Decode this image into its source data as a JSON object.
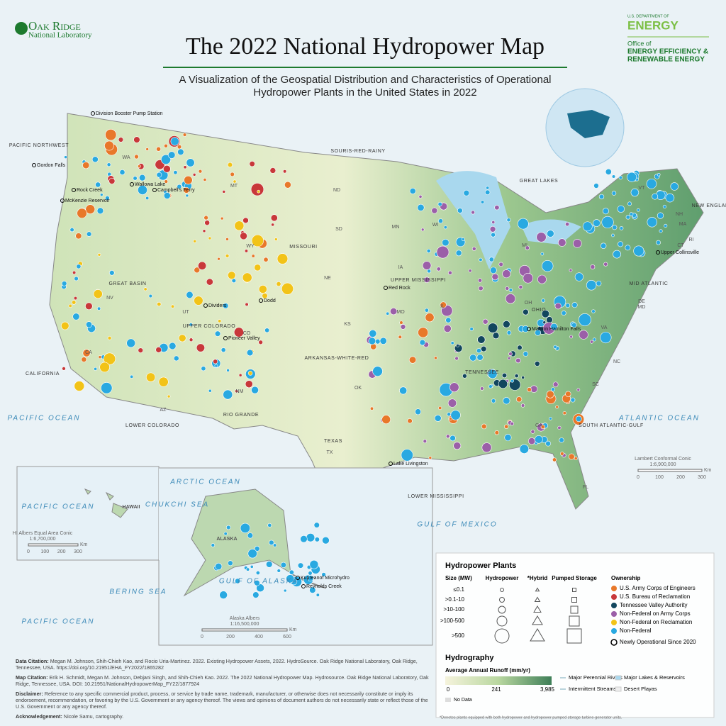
{
  "header": {
    "org_left": [
      "Oak Ridge",
      "National Laboratory"
    ],
    "title": "The 2022 National Hydropower Map",
    "subtitle": [
      "A Visualization of the Geospatial Distribution and Characteristics of Operational",
      "Hydropower Plants in the United States in 2022"
    ],
    "org_right": [
      "U.S. DEPARTMENT OF",
      "ENERGY",
      "Office of",
      "ENERGY EFFICIENCY &",
      "RENEWABLE ENERGY"
    ]
  },
  "map_labels": {
    "regions": [
      "PACIFIC NORTHWEST",
      "GREAT BASIN",
      "CALIFORNIA",
      "LOWER COLORADO",
      "UPPER COLORADO",
      "RIO GRANDE",
      "MISSOURI",
      "SOURIS-RED-RAINY",
      "ARKANSAS-WHITE-RED",
      "TEXAS",
      "UPPER MISSISSIPPI",
      "LOWER MISSISSIPPI",
      "GREAT LAKES",
      "OHIO",
      "TENNESSEE",
      "SOUTH ATLANTIC-GULF",
      "MID ATLANTIC",
      "NEW ENGLAND"
    ],
    "waters": [
      "PACIFIC OCEAN",
      "ATLANTIC OCEAN",
      "GULF OF MEXICO",
      "ARCTIC OCEAN",
      "CHUKCHI SEA",
      "BERING SEA",
      "GULF OF ALASKA",
      "PACIFIC OCEAN",
      "PACIFIC OCEAN"
    ],
    "states": [
      "WA",
      "MT",
      "ND",
      "SD",
      "WY",
      "NE",
      "NV",
      "UT",
      "CO",
      "CA",
      "AZ",
      "NM",
      "KS",
      "OK",
      "TX",
      "MN",
      "IA",
      "MO",
      "WI",
      "MI",
      "IL",
      "OH",
      "VA",
      "NC",
      "SC",
      "GA",
      "FL",
      "VT",
      "NH",
      "MA",
      "CT",
      "RI",
      "DE",
      "MD",
      "HAWAII",
      "ALASKA"
    ],
    "plants": [
      "Division Booster Pump Station",
      "Gordon Falls",
      "Rock Creek",
      "Wallowa Lake",
      "McKenzie Reservoir",
      "Campbell's Ferry",
      "Dividers",
      "Dodd",
      "Pioneer Valley",
      "Red Rock",
      "Mahlon Hamilton Falls",
      "Upper Collinsville",
      "Lake Livingston",
      "Kupreanof Microhydro",
      "Reynolds Creek"
    ]
  },
  "scales": {
    "main": {
      "projection": "Lambert Conformal Conic",
      "ratio": "1:6,900,000",
      "unit": "Km",
      "ticks": [
        "0",
        "100",
        "200",
        "300"
      ]
    },
    "hawaii": {
      "projection": "HI Albers Equal Area Conic",
      "ratio": "1:6,700,000",
      "unit": "Km",
      "ticks": [
        "0",
        "100",
        "200",
        "300"
      ]
    },
    "alaska": {
      "projection": "Alaska Albers",
      "ratio": "1:16,500,000",
      "unit": "Km",
      "ticks": [
        "0",
        "200",
        "400",
        "600"
      ]
    }
  },
  "legend": {
    "title": "Hydropower Plants",
    "columns": [
      "Size (MW)",
      "Hydropower",
      "*Hybrid",
      "Pumped Storage"
    ],
    "sizes": [
      "≤0.1",
      ">0.1-10",
      ">10-100",
      ">100-500",
      ">500"
    ],
    "ownership_title": "Ownership",
    "ownership": [
      {
        "name": "U.S. Army Corps of Engineers",
        "color": "#e8782a"
      },
      {
        "name": "U.S. Bureau of Reclamation",
        "color": "#c8383a"
      },
      {
        "name": "Tennessee Valley Authority",
        "color": "#12465e"
      },
      {
        "name": "Non-Federal on Army Corps",
        "color": "#9b5fa8"
      },
      {
        "name": "Non-Federal on Reclamation",
        "color": "#f2c318"
      },
      {
        "name": "Non-Federal",
        "color": "#29a9e1"
      }
    ],
    "new": "Newly Operational Since 2020",
    "hydro_title": "Hydrography",
    "runoff_title": "Average Annual Runoff (mm/yr)",
    "runoff_ticks": [
      "0",
      "241",
      "3,985"
    ],
    "no_data": "No Data",
    "features": [
      "Major Perennial Rivers",
      "Intermittent Streams",
      "Major Lakes & Reservoirs",
      "Desert Playas"
    ],
    "footnote": "*Denotes plants equipped with both hydropower and hydropower pumped storage turbine-generator units."
  },
  "footer": [
    {
      "label": "Data Citation:",
      "text": "Megan M. Johnson, Shih-Chieh Kao, and Rocio Uria-Martinez. 2022. Existing Hydropower Assets, 2022. HydroSource. Oak Ridge National Laboratory, Oak Ridge, Tennessee, USA. https://doi.org/10.21951/EHA_FY2022/1865282"
    },
    {
      "label": "Map Citation:",
      "text": "Erik H. Schmidt, Megan M. Johnson, Debjani Singh, and Shih-Chieh Kao. 2022. The 2022 National Hydropower Map. Hydrosource. Oak Ridge National Laboratory, Oak Ridge, Tennessee, USA. DOI: 10.21951/NationalHydropowerMap_FY22/1877924"
    },
    {
      "label": "Disclaimer:",
      "text": "Reference to any specific commercial product, process, or service by trade name, trademark, manufacturer, or otherwise does not necessarily constitute or imply its endorsement, recommendation, or favoring by the U.S. Government or any agency thereof. The views and opinions of document authors do not necessarily state or reflect those of the U.S. Government or any agency thereof."
    },
    {
      "label": "Acknowledgement:",
      "text": "Nicole Samu, cartography."
    }
  ]
}
